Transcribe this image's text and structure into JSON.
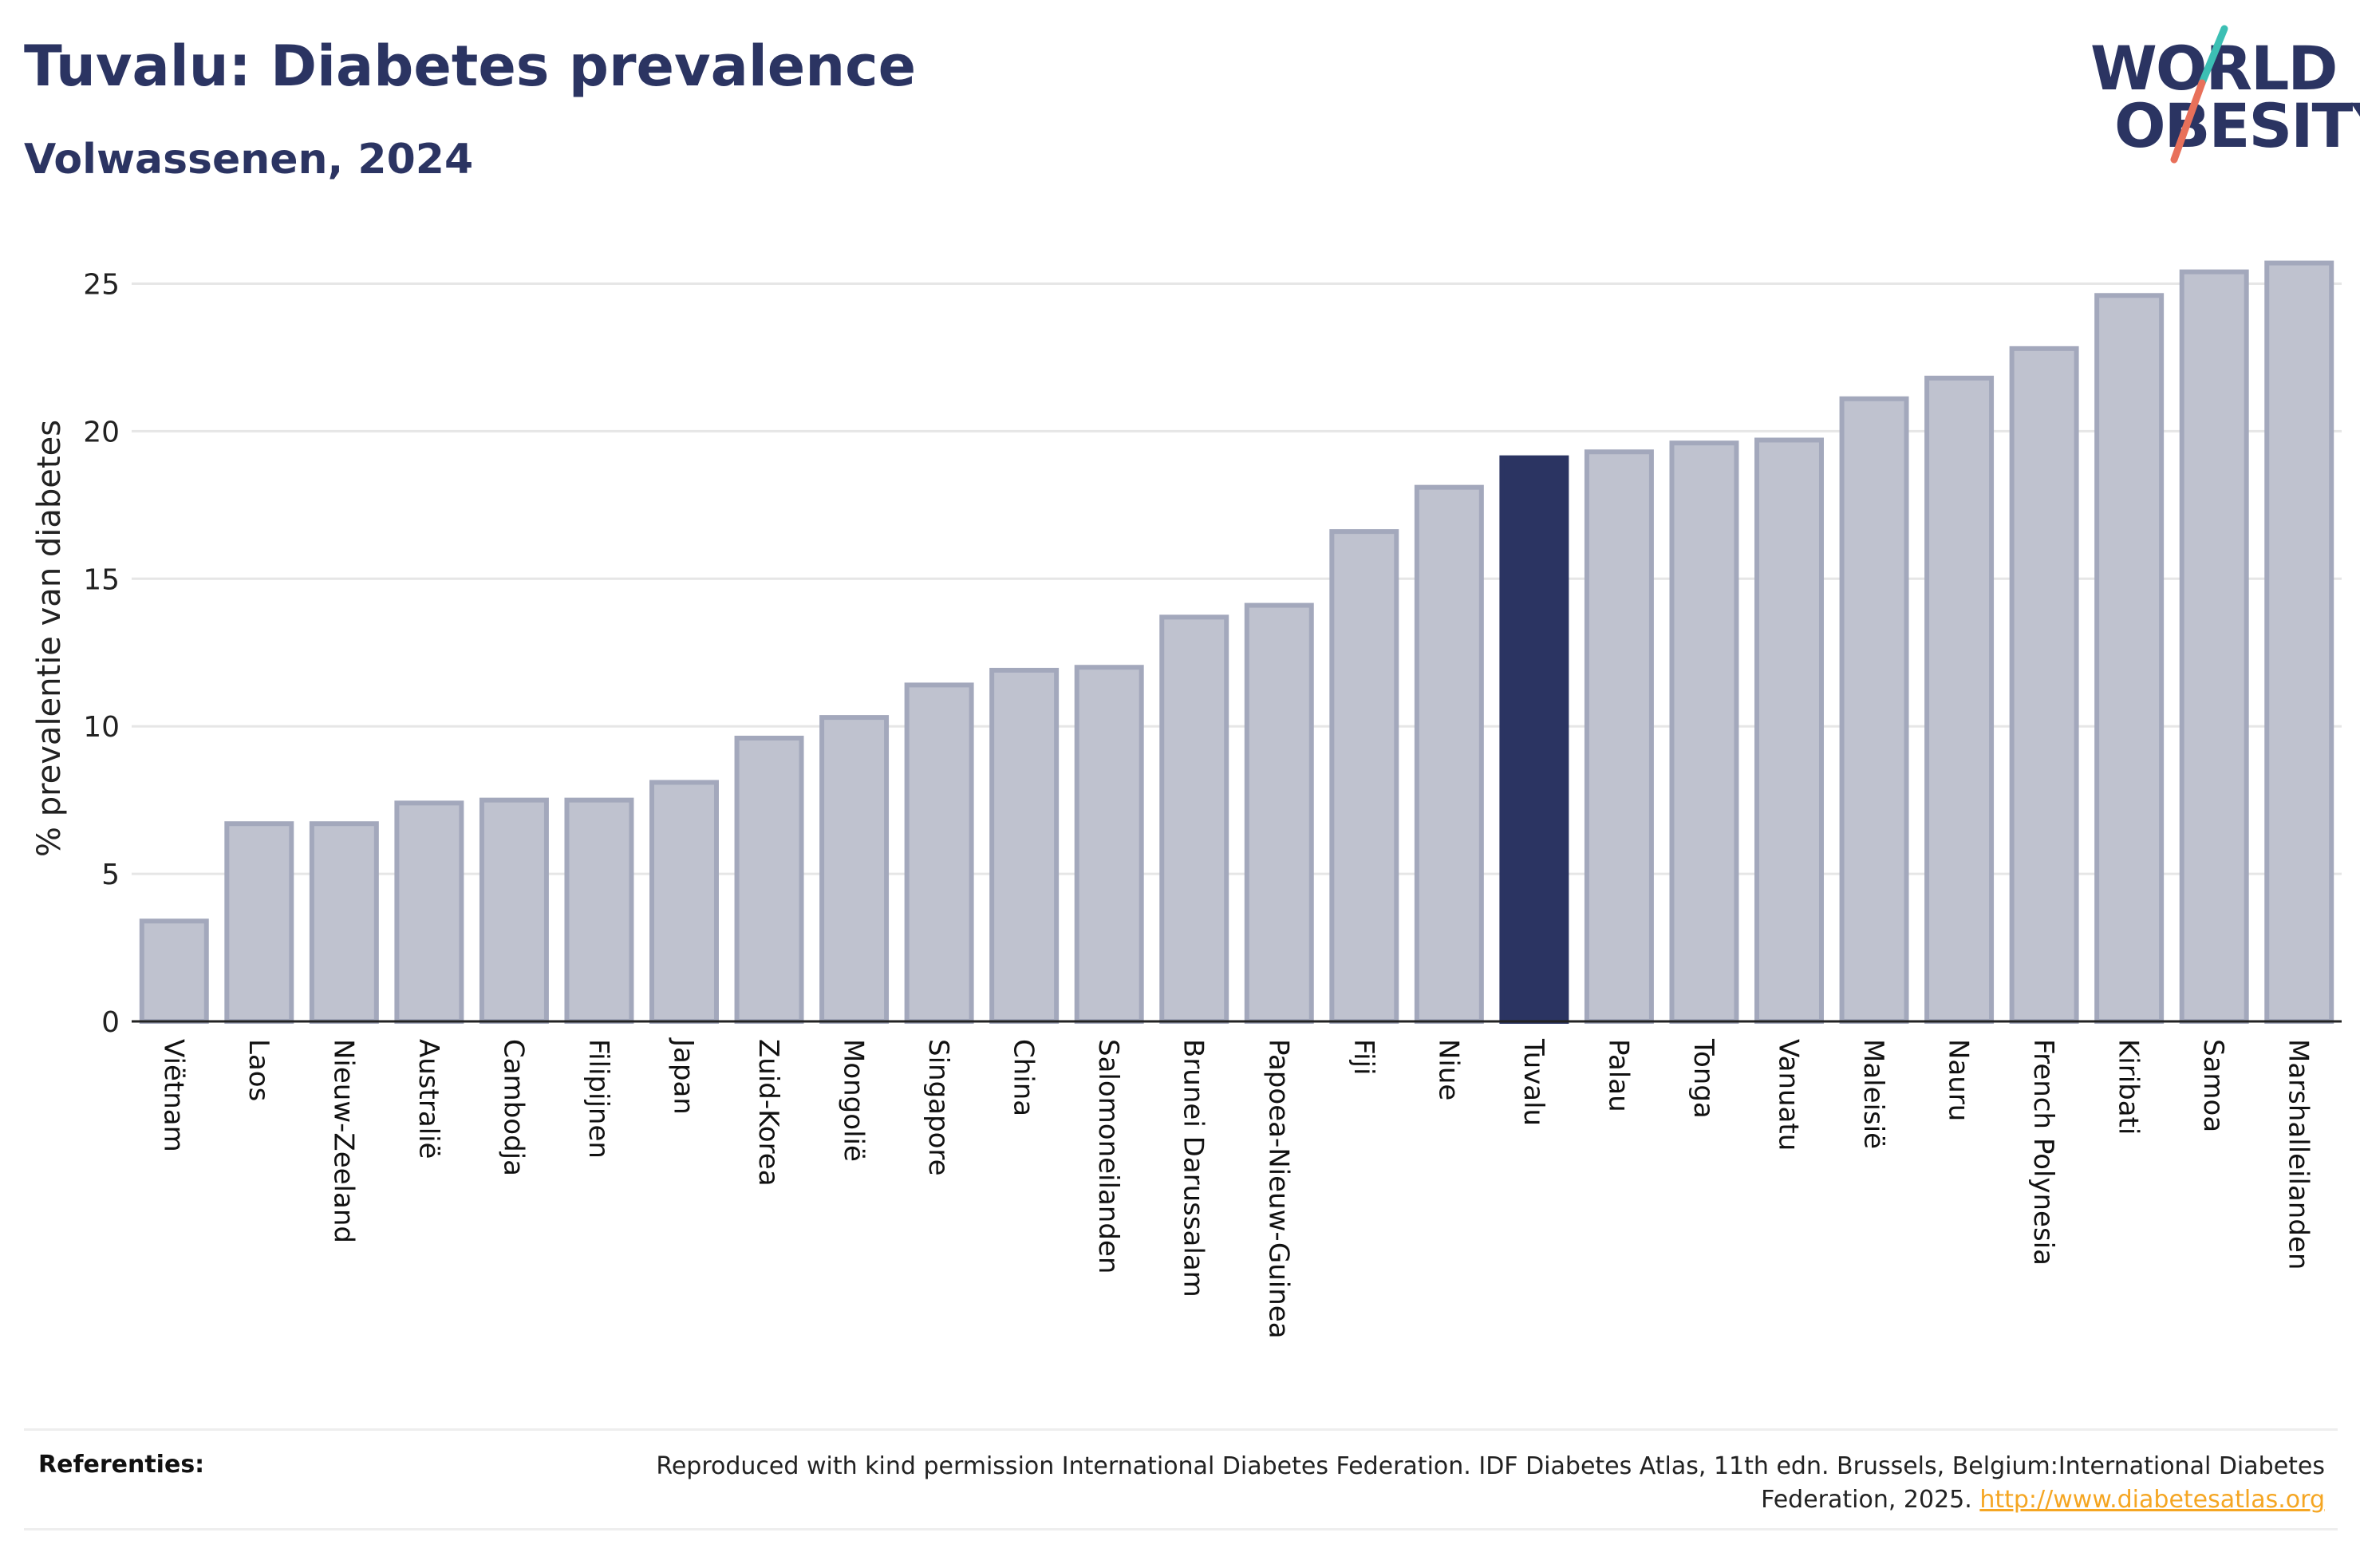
{
  "header": {
    "title": "Tuvalu: Diabetes prevalence",
    "subtitle": "Volwassenen, 2024"
  },
  "logo": {
    "line1": "WORLD",
    "line2": "OBESITY",
    "colors": {
      "text": "#2b3462",
      "slash_top": "#3cbfb4",
      "slash_bottom": "#e8705a"
    }
  },
  "chart_data": {
    "type": "bar",
    "title": "Tuvalu: Diabetes prevalence",
    "subtitle": "Volwassenen, 2024",
    "xlabel": "",
    "ylabel": "% prevalentie van diabetes",
    "ylim": [
      0,
      26.5
    ],
    "yticks": [
      0,
      5,
      10,
      15,
      20,
      25
    ],
    "grid": true,
    "highlight": "Tuvalu",
    "colors": {
      "bar": "#bfc2cf",
      "bar_border": "#a3a8bc",
      "highlight": "#2b3462"
    },
    "categories": [
      "Viëtnam",
      "Laos",
      "Nieuw-Zeeland",
      "Australië",
      "Cambodja",
      "Filipijnen",
      "Japan",
      "Zuid-Korea",
      "Mongolië",
      "Singapore",
      "China",
      "Salomoneilanden",
      "Brunei Darussalam",
      "Papoea-Nieuw-Guinea",
      "Fiji",
      "Niue",
      "Tuvalu",
      "Palau",
      "Tonga",
      "Vanuatu",
      "Maleisië",
      "Nauru",
      "French Polynesia",
      "Kiribati",
      "Samoa",
      "Marshalleilanden"
    ],
    "values": [
      3.4,
      6.7,
      6.7,
      7.4,
      7.5,
      7.5,
      8.1,
      9.6,
      10.3,
      11.4,
      11.9,
      12.0,
      13.7,
      14.1,
      16.6,
      18.1,
      19.1,
      19.3,
      19.6,
      19.7,
      21.1,
      21.8,
      22.8,
      24.6,
      25.4,
      25.7
    ]
  },
  "references": {
    "label": "Referenties:",
    "text": "Reproduced with kind permission International Diabetes Federation. IDF Diabetes Atlas, 11th edn. Brussels, Belgium:International Diabetes Federation, 2025.",
    "link": "http://www.diabetesatlas.org"
  }
}
